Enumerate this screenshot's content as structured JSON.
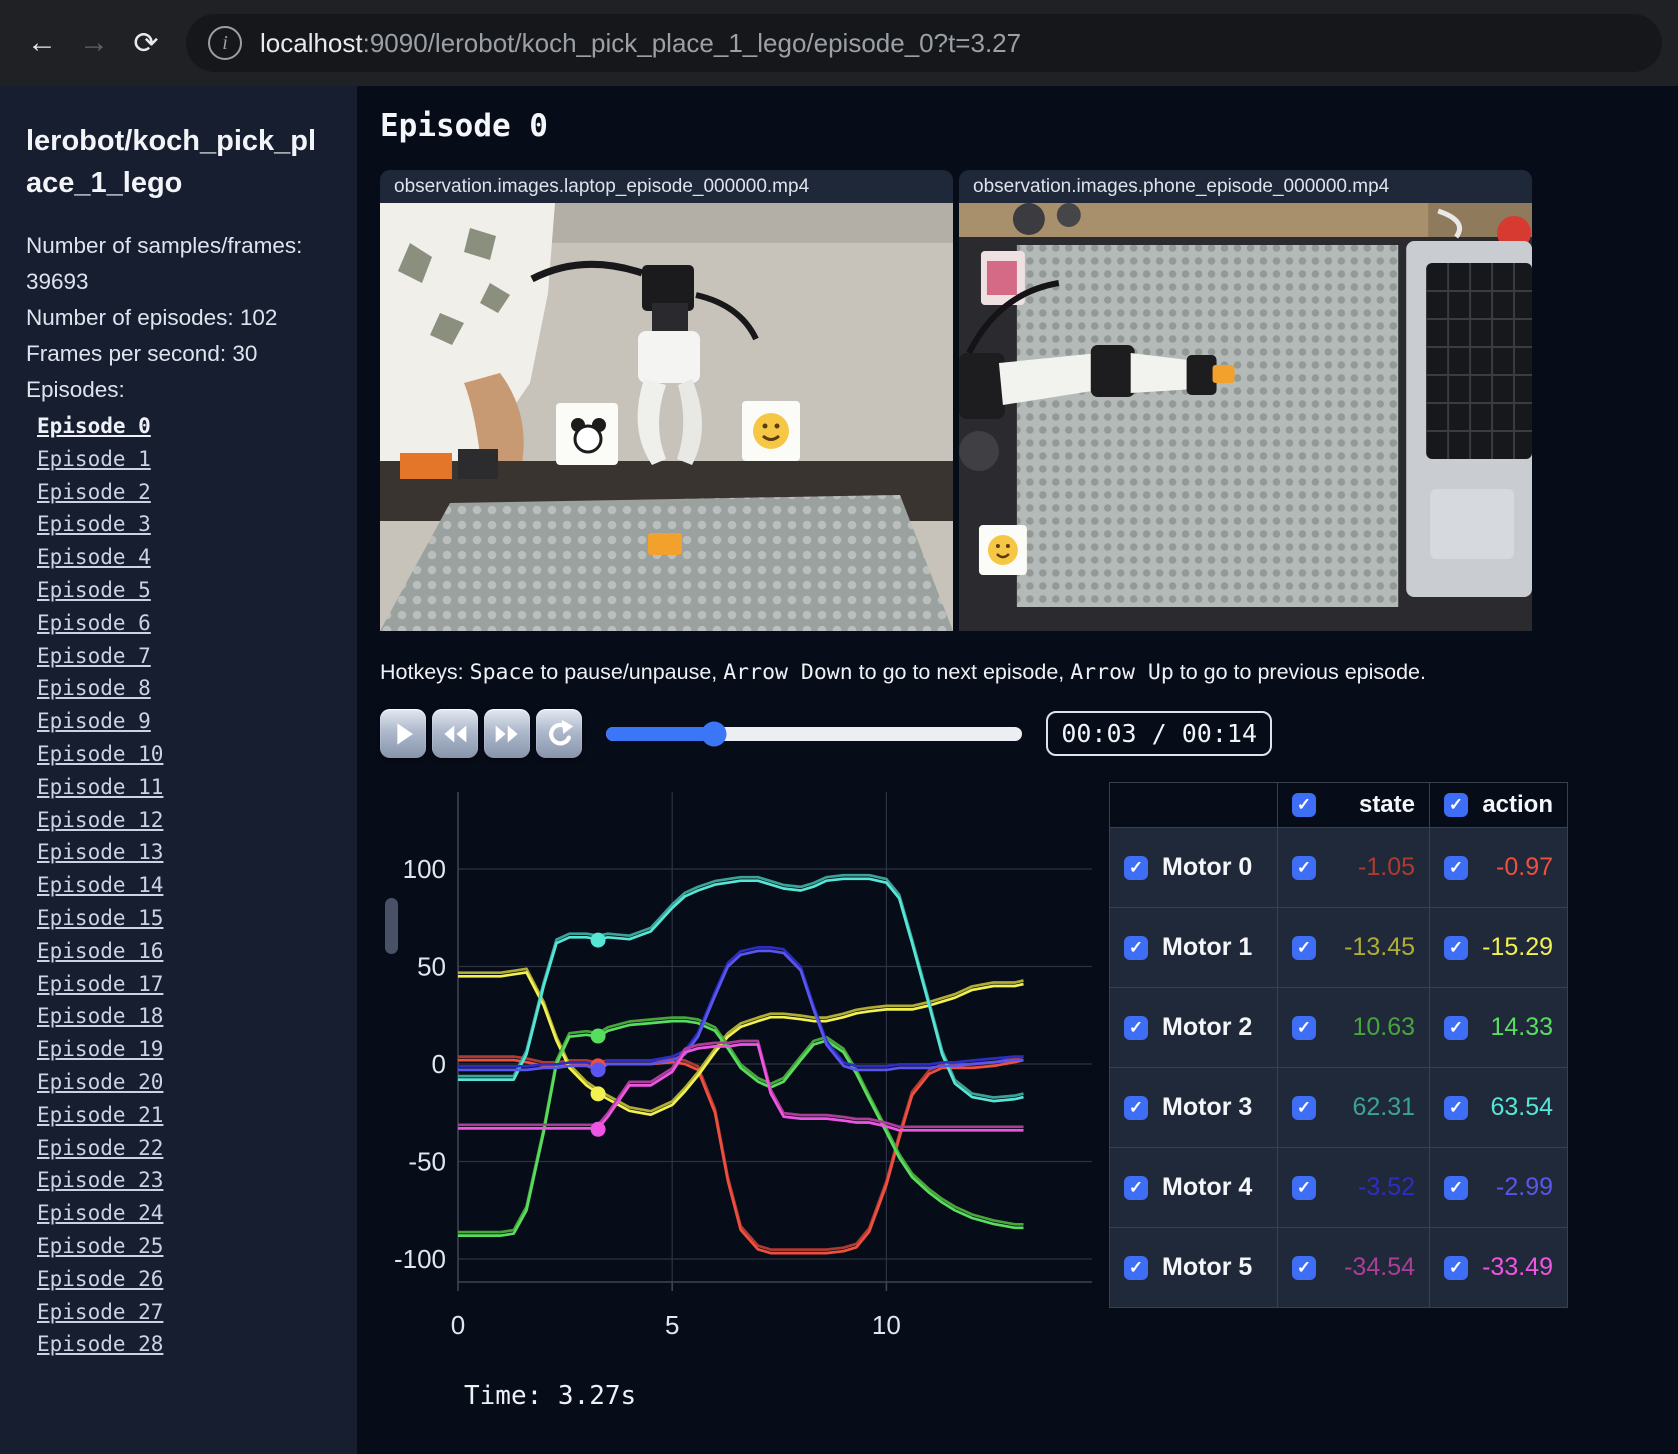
{
  "browser": {
    "url_host": "localhost",
    "url_rest": ":9090/lerobot/koch_pick_place_1_lego/episode_0?t=3.27",
    "back_icon": "back-arrow",
    "forward_icon": "forward-arrow",
    "reload_icon": "reload"
  },
  "sidebar": {
    "title": "lerobot/koch_pick_place_1_lego",
    "stats": [
      "Number of samples/frames: 39693",
      "Number of episodes: 102",
      "Frames per second: 30"
    ],
    "episodes_label": "Episodes:",
    "active_episode": "Episode 0",
    "episodes": [
      "Episode 0",
      "Episode 1",
      "Episode 2",
      "Episode 3",
      "Episode 4",
      "Episode 5",
      "Episode 6",
      "Episode 7",
      "Episode 8",
      "Episode 9",
      "Episode 10",
      "Episode 11",
      "Episode 12",
      "Episode 13",
      "Episode 14",
      "Episode 15",
      "Episode 16",
      "Episode 17",
      "Episode 18",
      "Episode 19",
      "Episode 20",
      "Episode 21",
      "Episode 22",
      "Episode 23",
      "Episode 24",
      "Episode 25",
      "Episode 26",
      "Episode 27",
      "Episode 28"
    ]
  },
  "main": {
    "heading": "Episode 0",
    "videos": [
      {
        "title": "observation.images.laptop_episode_000000.mp4"
      },
      {
        "title": "observation.images.phone_episode_000000.mp4"
      }
    ],
    "hotkeys": {
      "prefix": "Hotkeys: ",
      "key1": "Space",
      "mid1": " to pause/unpause, ",
      "key2": "Arrow Down",
      "mid2": " to go to next episode, ",
      "key3": "Arrow Up",
      "suffix": " to go to previous episode."
    },
    "controls": {
      "time_display": "00:03 / 00:14",
      "progress_percent": 26,
      "accent_color": "#3b76f6"
    },
    "time_label": "Time: 3.27s"
  },
  "table": {
    "state_header": "state",
    "action_header": "action",
    "rows": [
      {
        "label": "Motor 0",
        "state": "-1.05",
        "action": "-0.97",
        "state_color": "#ad3b31",
        "action_color": "#ef4f3f"
      },
      {
        "label": "Motor 1",
        "state": "-13.45",
        "action": "-15.29",
        "state_color": "#b0ad35",
        "action_color": "#f2f150"
      },
      {
        "label": "Motor 2",
        "state": "10.63",
        "action": "14.33",
        "state_color": "#4aa43c",
        "action_color": "#58de5e"
      },
      {
        "label": "Motor 3",
        "state": "62.31",
        "action": "63.54",
        "state_color": "#3da296",
        "action_color": "#55e6d6"
      },
      {
        "label": "Motor 4",
        "state": "-3.52",
        "action": "-2.99",
        "state_color": "#2d2dc4",
        "action_color": "#5a55ec"
      },
      {
        "label": "Motor 5",
        "state": "-34.54",
        "action": "-33.49",
        "state_color": "#aa3f97",
        "action_color": "#ee55e2"
      }
    ]
  },
  "chart_data": {
    "type": "line",
    "title": "",
    "xlabel": "",
    "ylabel": "",
    "x_ticks": [
      0,
      5,
      10
    ],
    "y_ticks": [
      100,
      50,
      0,
      -50,
      -100
    ],
    "xlim": [
      0,
      14.8
    ],
    "ylim": [
      -115,
      115
    ],
    "grid": true,
    "legend_position": "none",
    "current_time": 3.27,
    "x": [
      0,
      0.5,
      1,
      1.3,
      1.6,
      2,
      2.3,
      2.6,
      3,
      3.27,
      3.5,
      4,
      4.5,
      5,
      5.3,
      5.6,
      6,
      6.3,
      6.6,
      7,
      7.3,
      7.6,
      8,
      8.3,
      8.6,
      9,
      9.3,
      9.6,
      10,
      10.3,
      10.6,
      11,
      11.3,
      11.6,
      12,
      12.5,
      13,
      13.2
    ],
    "series": [
      {
        "name": "Motor 0",
        "state_color": "#ad3b31",
        "action_color": "#ef4f3f",
        "values": [
          2,
          2,
          2,
          2,
          1,
          -1,
          -1,
          0,
          0,
          -1,
          0,
          0,
          0,
          1,
          0,
          -3,
          -25,
          -60,
          -85,
          -95,
          -97,
          -97,
          -97,
          -97,
          -97,
          -96,
          -94,
          -86,
          -62,
          -38,
          -16,
          -5,
          -2,
          -2,
          -2,
          -1,
          1,
          2
        ]
      },
      {
        "name": "Motor 1",
        "state_color": "#b0ad35",
        "action_color": "#f2f150",
        "values": [
          45,
          45,
          45,
          46,
          47,
          30,
          12,
          -2,
          -11,
          -15,
          -18,
          -24,
          -26,
          -21,
          -14,
          -6,
          6,
          14,
          19,
          22,
          24,
          24,
          23,
          22,
          22,
          24,
          26,
          27,
          28,
          28,
          28,
          30,
          32,
          34,
          38,
          40,
          40,
          41
        ]
      },
      {
        "name": "Motor 2",
        "state_color": "#4aa43c",
        "action_color": "#58de5e",
        "values": [
          -88,
          -88,
          -88,
          -87,
          -75,
          -35,
          0,
          14,
          15,
          14,
          17,
          20,
          21,
          22,
          22,
          21,
          17,
          8,
          -2,
          -9,
          -12,
          -9,
          2,
          10,
          12,
          6,
          -5,
          -18,
          -35,
          -48,
          -58,
          -66,
          -71,
          -75,
          -79,
          -82,
          -84,
          -84
        ]
      },
      {
        "name": "Motor 3",
        "state_color": "#3da296",
        "action_color": "#55e6d6",
        "values": [
          -8,
          -8,
          -8,
          -8,
          5,
          40,
          62,
          65,
          65,
          64,
          65,
          64,
          68,
          80,
          86,
          89,
          92,
          93,
          94,
          94,
          92,
          90,
          89,
          91,
          94,
          95,
          95,
          95,
          93,
          85,
          62,
          30,
          5,
          -10,
          -17,
          -19,
          -18,
          -17
        ]
      },
      {
        "name": "Motor 4",
        "state_color": "#2d2dc4",
        "action_color": "#5a55ec",
        "values": [
          -3,
          -3,
          -3,
          -3,
          -3,
          -2,
          -2,
          -1,
          -1,
          -3,
          0,
          0,
          0,
          2,
          5,
          14,
          35,
          50,
          56,
          58,
          58,
          57,
          48,
          28,
          10,
          -1,
          -3,
          -3,
          -3,
          -2,
          -2,
          -2,
          -1,
          -1,
          0,
          1,
          2,
          2
        ]
      },
      {
        "name": "Motor 5",
        "state_color": "#aa3f97",
        "action_color": "#ee55e2",
        "values": [
          -33,
          -33,
          -33,
          -33,
          -33,
          -33,
          -33,
          -33,
          -33,
          -33,
          -27,
          -11,
          -11,
          -4,
          6,
          8,
          9,
          9,
          10,
          10,
          -15,
          -27,
          -28,
          -28,
          -28,
          -29,
          -30,
          -30,
          -32,
          -34,
          -34,
          -34,
          -34,
          -34,
          -34,
          -34,
          -34,
          -34
        ]
      }
    ],
    "markers_at_current_time": [
      -0.97,
      -15.29,
      14.33,
      63.54,
      -2.99,
      -33.49
    ]
  }
}
